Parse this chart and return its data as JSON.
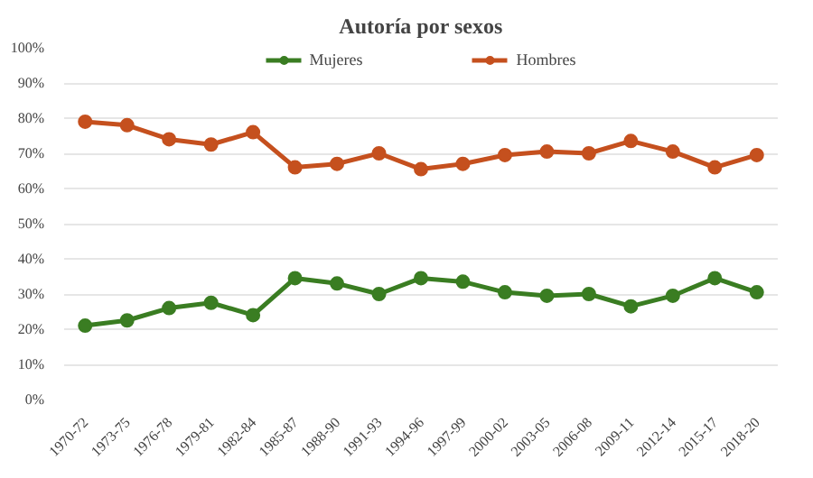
{
  "chart_data": {
    "type": "line",
    "title": "Autoría por sexos",
    "categories": [
      "1970-72",
      "1973-75",
      "1976-78",
      "1979-81",
      "1982-84",
      "1985-87",
      "1988-90",
      "1991-93",
      "1994-96",
      "1997-99",
      "2000-02",
      "2003-05",
      "2006-08",
      "2009-11",
      "2012-14",
      "2015-17",
      "2018-20"
    ],
    "series": [
      {
        "name": "Mujeres",
        "color": "#3a7d22",
        "values": [
          21,
          22.5,
          26,
          27.5,
          24,
          34.5,
          33,
          30,
          34.5,
          33.5,
          30.5,
          29.5,
          30,
          26.5,
          29.5,
          34.5,
          30.5
        ]
      },
      {
        "name": "Hombres",
        "color": "#c5501e",
        "values": [
          79,
          78,
          74,
          72.5,
          76,
          66,
          67,
          70,
          65.5,
          67,
          69.5,
          70.5,
          70,
          73.5,
          70.5,
          66,
          69.5
        ]
      }
    ],
    "ylim": [
      0,
      100
    ],
    "yticks": [
      {
        "value": 0,
        "label": "0%"
      },
      {
        "value": 10,
        "label": "10%"
      },
      {
        "value": 20,
        "label": "20%"
      },
      {
        "value": 30,
        "label": "30%"
      },
      {
        "value": 40,
        "label": "40%"
      },
      {
        "value": 50,
        "label": "50%"
      },
      {
        "value": 60,
        "label": "60%"
      },
      {
        "value": 70,
        "label": "70%"
      },
      {
        "value": 80,
        "label": "80%"
      },
      {
        "value": 90,
        "label": "90%"
      },
      {
        "value": 100,
        "label": "100%"
      }
    ],
    "grid": "y",
    "legend": "top",
    "marker": "circle",
    "line_style": "solid"
  }
}
